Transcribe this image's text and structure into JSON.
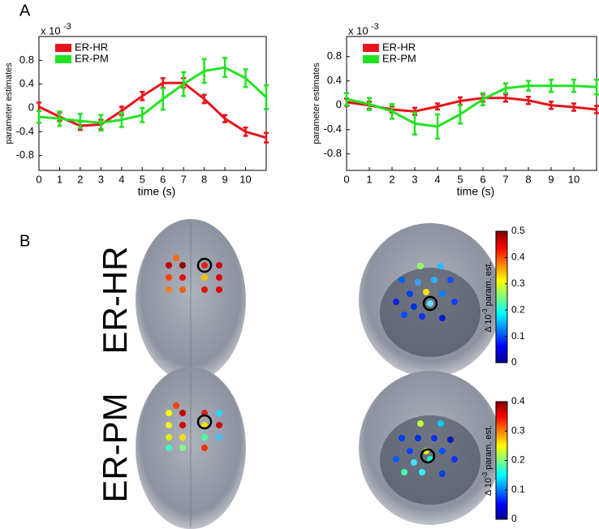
{
  "panels": [
    "A",
    "B"
  ],
  "rows": [
    "ER-HR",
    "ER-PM"
  ],
  "chart_data": [
    {
      "type": "line",
      "x_label": "time (s)",
      "y_label": "parameter estimates",
      "y_scale_base": "x 10",
      "y_scale_exponent": "-3",
      "x": [
        0,
        1,
        2,
        3,
        4,
        5,
        6,
        7,
        8,
        9,
        10,
        11
      ],
      "xlim": [
        0,
        11
      ],
      "xticks": [
        0,
        1,
        2,
        3,
        4,
        5,
        6,
        7,
        8,
        9,
        10
      ],
      "ylim": [
        -1.05,
        1.2
      ],
      "yticks": [
        -0.8,
        -0.4,
        0,
        0.4,
        0.8
      ],
      "legend": "upper left",
      "series": [
        {
          "name": "ER-HR",
          "color": "#e8141c",
          "values": [
            0.02,
            -0.15,
            -0.3,
            -0.28,
            -0.05,
            0.2,
            0.42,
            0.42,
            0.15,
            -0.18,
            -0.4,
            -0.5
          ],
          "errors": [
            0.07,
            0.07,
            0.07,
            0.08,
            0.07,
            0.07,
            0.08,
            0.08,
            0.07,
            0.06,
            0.07,
            0.08
          ]
        },
        {
          "name": "ER-PM",
          "color": "#22e322",
          "values": [
            -0.15,
            -0.18,
            -0.22,
            -0.25,
            -0.2,
            -0.12,
            0.15,
            0.4,
            0.62,
            0.68,
            0.5,
            0.18
          ],
          "errors": [
            0.1,
            0.12,
            0.12,
            0.13,
            0.12,
            0.12,
            0.18,
            0.2,
            0.2,
            0.16,
            0.15,
            0.2
          ]
        }
      ]
    },
    {
      "type": "line",
      "x_label": "time (s)",
      "y_label": "parameter estimates",
      "y_scale_base": "x 10",
      "y_scale_exponent": "-3",
      "x": [
        0,
        1,
        2,
        3,
        4,
        5,
        6,
        7,
        8,
        9,
        10,
        11
      ],
      "xlim": [
        0,
        11
      ],
      "xticks": [
        0,
        1,
        2,
        3,
        4,
        5,
        6,
        7,
        8,
        9,
        10
      ],
      "ylim": [
        -1.07,
        1.13
      ],
      "yticks": [
        -0.8,
        -0.4,
        0,
        0.4,
        0.8
      ],
      "legend": "upper left",
      "series": [
        {
          "name": "ER-HR",
          "color": "#e8141c",
          "values": [
            0.05,
            0.0,
            -0.07,
            -0.1,
            -0.02,
            0.07,
            0.12,
            0.12,
            0.08,
            0.0,
            -0.03,
            -0.07
          ],
          "errors": [
            0.06,
            0.06,
            0.05,
            0.06,
            0.05,
            0.06,
            0.06,
            0.06,
            0.06,
            0.06,
            0.06,
            0.06
          ]
        },
        {
          "name": "ER-PM",
          "color": "#22e322",
          "values": [
            0.1,
            0.02,
            -0.1,
            -0.3,
            -0.35,
            -0.15,
            0.1,
            0.28,
            0.32,
            0.32,
            0.32,
            0.3
          ],
          "errors": [
            0.1,
            0.1,
            0.12,
            0.18,
            0.2,
            0.15,
            0.1,
            0.08,
            0.08,
            0.1,
            0.1,
            0.12
          ]
        }
      ]
    },
    {
      "type": "colorbar",
      "label": "Δ 10",
      "label_exponent": "-3",
      "label_suffix": "param. est.",
      "ylim": [
        0,
        0.5
      ],
      "yticks": [
        0,
        0.1,
        0.2,
        0.3,
        0.4,
        0.5
      ]
    },
    {
      "type": "colorbar",
      "label": "Δ 10",
      "label_exponent": "-3",
      "label_suffix": "param. est.",
      "ylim": [
        0,
        0.4
      ],
      "yticks": [
        0,
        0.1,
        0.2,
        0.3,
        0.4
      ]
    }
  ]
}
